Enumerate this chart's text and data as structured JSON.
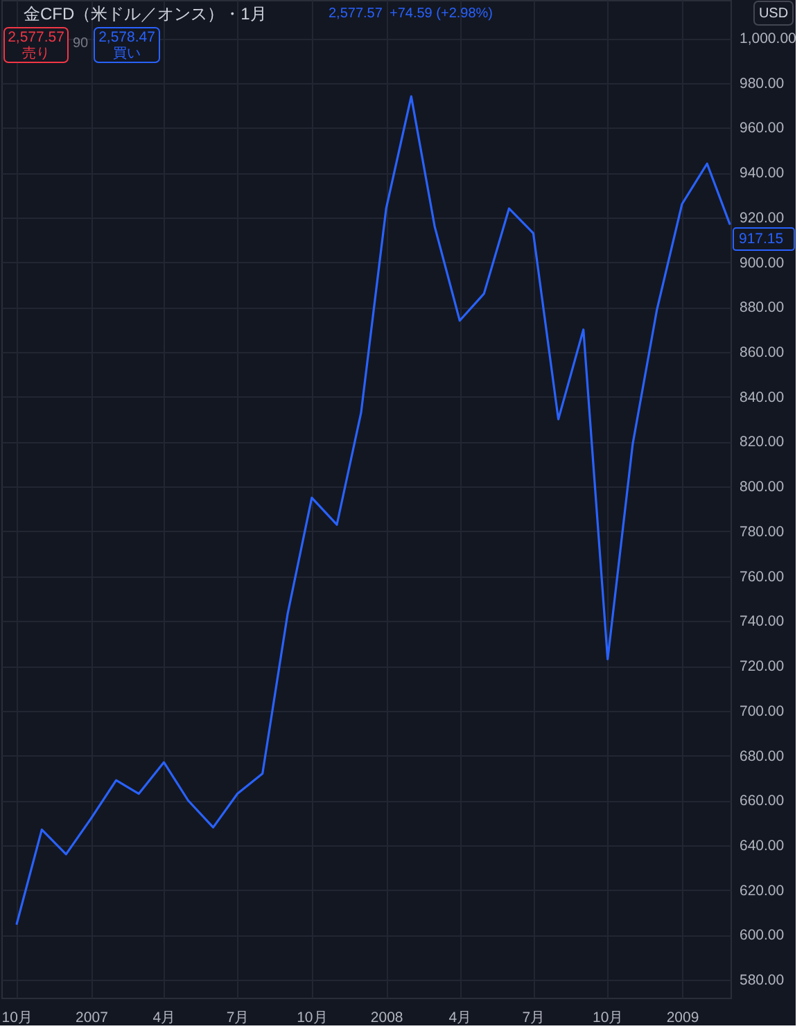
{
  "chart_data": {
    "type": "line",
    "title": "金CFD（米ドル／オンス）・1月",
    "annotations": [
      "2,577.57",
      "+74.59 (+2.98%)",
      "2,577.57",
      "売り",
      "90",
      "2,578.47",
      "買い",
      "USD"
    ],
    "x": [
      "2006-10",
      "2006-11",
      "2006-12",
      "2007-01",
      "2007-02",
      "2007-03",
      "2007-04",
      "2007-05",
      "2007-06",
      "2007-07",
      "2007-08",
      "2007-09",
      "2007-10",
      "2007-11",
      "2007-12",
      "2008-01",
      "2008-02",
      "2008-03",
      "2008-04",
      "2008-05",
      "2008-06",
      "2008-07",
      "2008-08",
      "2008-09",
      "2008-10",
      "2008-11",
      "2008-12",
      "2009-01",
      "2009-02",
      "2009-03"
    ],
    "series": [
      {
        "color": "#2962ff",
        "values": [
          605,
          647,
          636,
          652,
          669,
          663,
          677,
          660,
          648,
          663,
          672,
          743,
          795,
          783,
          833,
          924,
          974,
          916,
          874,
          886,
          924,
          913,
          830,
          870,
          723,
          819,
          879,
          926,
          944,
          917.15
        ],
        "value_labels": [
          null,
          null,
          null,
          null,
          null,
          null,
          null,
          null,
          null,
          null,
          null,
          null,
          null,
          null,
          null,
          null,
          null,
          null,
          null,
          null,
          null,
          null,
          null,
          null,
          null,
          null,
          null,
          null,
          null,
          "917.15"
        ]
      }
    ],
    "xlim": [
      "2006-09-12",
      "2009-03-02"
    ],
    "xticks": [
      {
        "value": "2006-10",
        "label": "10月"
      },
      {
        "value": "2007",
        "label": "2007"
      },
      {
        "value": "2007-04",
        "label": "4月"
      },
      {
        "value": "2007-07",
        "label": "7月"
      },
      {
        "value": "2007-10",
        "label": "10月"
      },
      {
        "value": "2008",
        "label": "2008"
      },
      {
        "value": "2008-04",
        "label": "4月"
      },
      {
        "value": "2008-07",
        "label": "7月"
      },
      {
        "value": "2008-10",
        "label": "10月"
      },
      {
        "value": "2009",
        "label": "2009"
      }
    ],
    "ylim": [
      572,
      1017
    ],
    "yticks": [
      {
        "value": 580,
        "label": "580.00"
      },
      {
        "value": 600,
        "label": "600.00"
      },
      {
        "value": 620,
        "label": "620.00"
      },
      {
        "value": 640,
        "label": "640.00"
      },
      {
        "value": 660,
        "label": "660.00"
      },
      {
        "value": 680,
        "label": "680.00"
      },
      {
        "value": 700,
        "label": "700.00"
      },
      {
        "value": 720,
        "label": "720.00"
      },
      {
        "value": 740,
        "label": "740.00"
      },
      {
        "value": 760,
        "label": "760.00"
      },
      {
        "value": 780,
        "label": "780.00"
      },
      {
        "value": 800,
        "label": "800.00"
      },
      {
        "value": 820,
        "label": "820.00"
      },
      {
        "value": 840,
        "label": "840.00"
      },
      {
        "value": 860,
        "label": "860.00"
      },
      {
        "value": 880,
        "label": "880.00"
      },
      {
        "value": 900,
        "label": "900.00"
      },
      {
        "value": 920,
        "label": "920.00"
      },
      {
        "value": 940,
        "label": "940.00"
      },
      {
        "value": 960,
        "label": "960.00"
      },
      {
        "value": 980,
        "label": "980.00"
      },
      {
        "value": 1000,
        "label": "1,000.00"
      }
    ],
    "grid": true
  }
}
